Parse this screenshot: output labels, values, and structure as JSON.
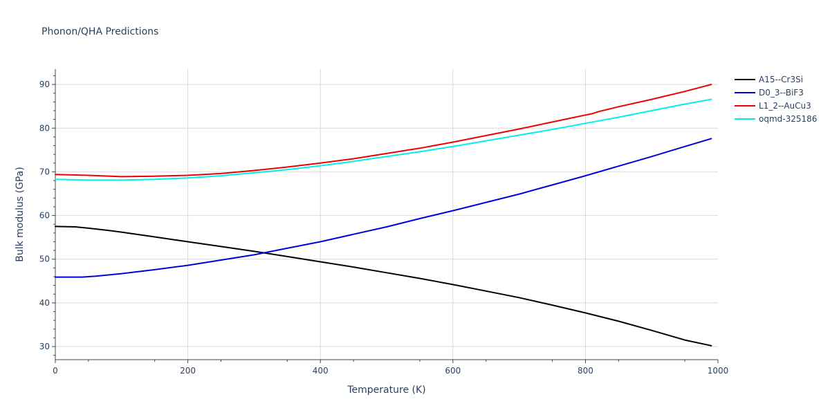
{
  "chart_data": {
    "type": "line",
    "title": "Phonon/QHA Predictions",
    "xlabel": "Temperature (K)",
    "ylabel": "Bulk modulus (GPa)",
    "xlim": [
      0,
      1000
    ],
    "ylim": [
      27,
      93.5
    ],
    "xticks": [
      0,
      200,
      400,
      600,
      800,
      1000
    ],
    "yticks": [
      30,
      40,
      50,
      60,
      70,
      80,
      90
    ],
    "grid": true,
    "legend_position": "right",
    "series": [
      {
        "name": "A15--Cr3Si",
        "color": "#000000",
        "x": [
          0,
          30,
          50,
          80,
          100,
          150,
          200,
          250,
          300,
          350,
          400,
          450,
          500,
          550,
          600,
          650,
          700,
          750,
          800,
          850,
          900,
          950,
          990
        ],
        "y": [
          57.5,
          57.4,
          57.1,
          56.6,
          56.2,
          55.1,
          54.0,
          52.9,
          51.8,
          50.6,
          49.4,
          48.2,
          46.9,
          45.6,
          44.2,
          42.7,
          41.2,
          39.5,
          37.7,
          35.8,
          33.7,
          31.5,
          30.2
        ]
      },
      {
        "name": "D0_3--BiF3",
        "color": "#0000dd",
        "x": [
          0,
          40,
          60,
          100,
          150,
          200,
          250,
          300,
          350,
          400,
          450,
          500,
          550,
          600,
          650,
          700,
          750,
          800,
          850,
          900,
          950,
          990
        ],
        "y": [
          45.9,
          45.9,
          46.1,
          46.7,
          47.6,
          48.6,
          49.8,
          51.0,
          52.5,
          54.0,
          55.7,
          57.4,
          59.3,
          61.1,
          63.0,
          64.9,
          67.0,
          69.1,
          71.3,
          73.5,
          75.8,
          77.6
        ]
      },
      {
        "name": "L1_2--AuCu3",
        "color": "#ee0000",
        "x": [
          0,
          50,
          100,
          150,
          200,
          250,
          300,
          350,
          400,
          450,
          500,
          550,
          600,
          650,
          700,
          750,
          800,
          810,
          820,
          850,
          900,
          950,
          990
        ],
        "y": [
          69.4,
          69.2,
          68.9,
          69.0,
          69.2,
          69.6,
          70.3,
          71.1,
          72.0,
          73.0,
          74.2,
          75.4,
          76.8,
          78.3,
          79.8,
          81.4,
          83.0,
          83.3,
          83.8,
          84.9,
          86.6,
          88.4,
          90.0
        ]
      },
      {
        "name": "oqmd-325186",
        "color": "#00eeee",
        "x": [
          0,
          50,
          100,
          150,
          200,
          250,
          300,
          350,
          400,
          450,
          500,
          550,
          600,
          650,
          700,
          750,
          800,
          850,
          900,
          950,
          990
        ],
        "y": [
          68.3,
          68.1,
          68.1,
          68.3,
          68.6,
          69.1,
          69.8,
          70.5,
          71.4,
          72.4,
          73.5,
          74.6,
          75.8,
          77.1,
          78.4,
          79.7,
          81.1,
          82.5,
          84.0,
          85.5,
          86.6
        ]
      }
    ]
  }
}
